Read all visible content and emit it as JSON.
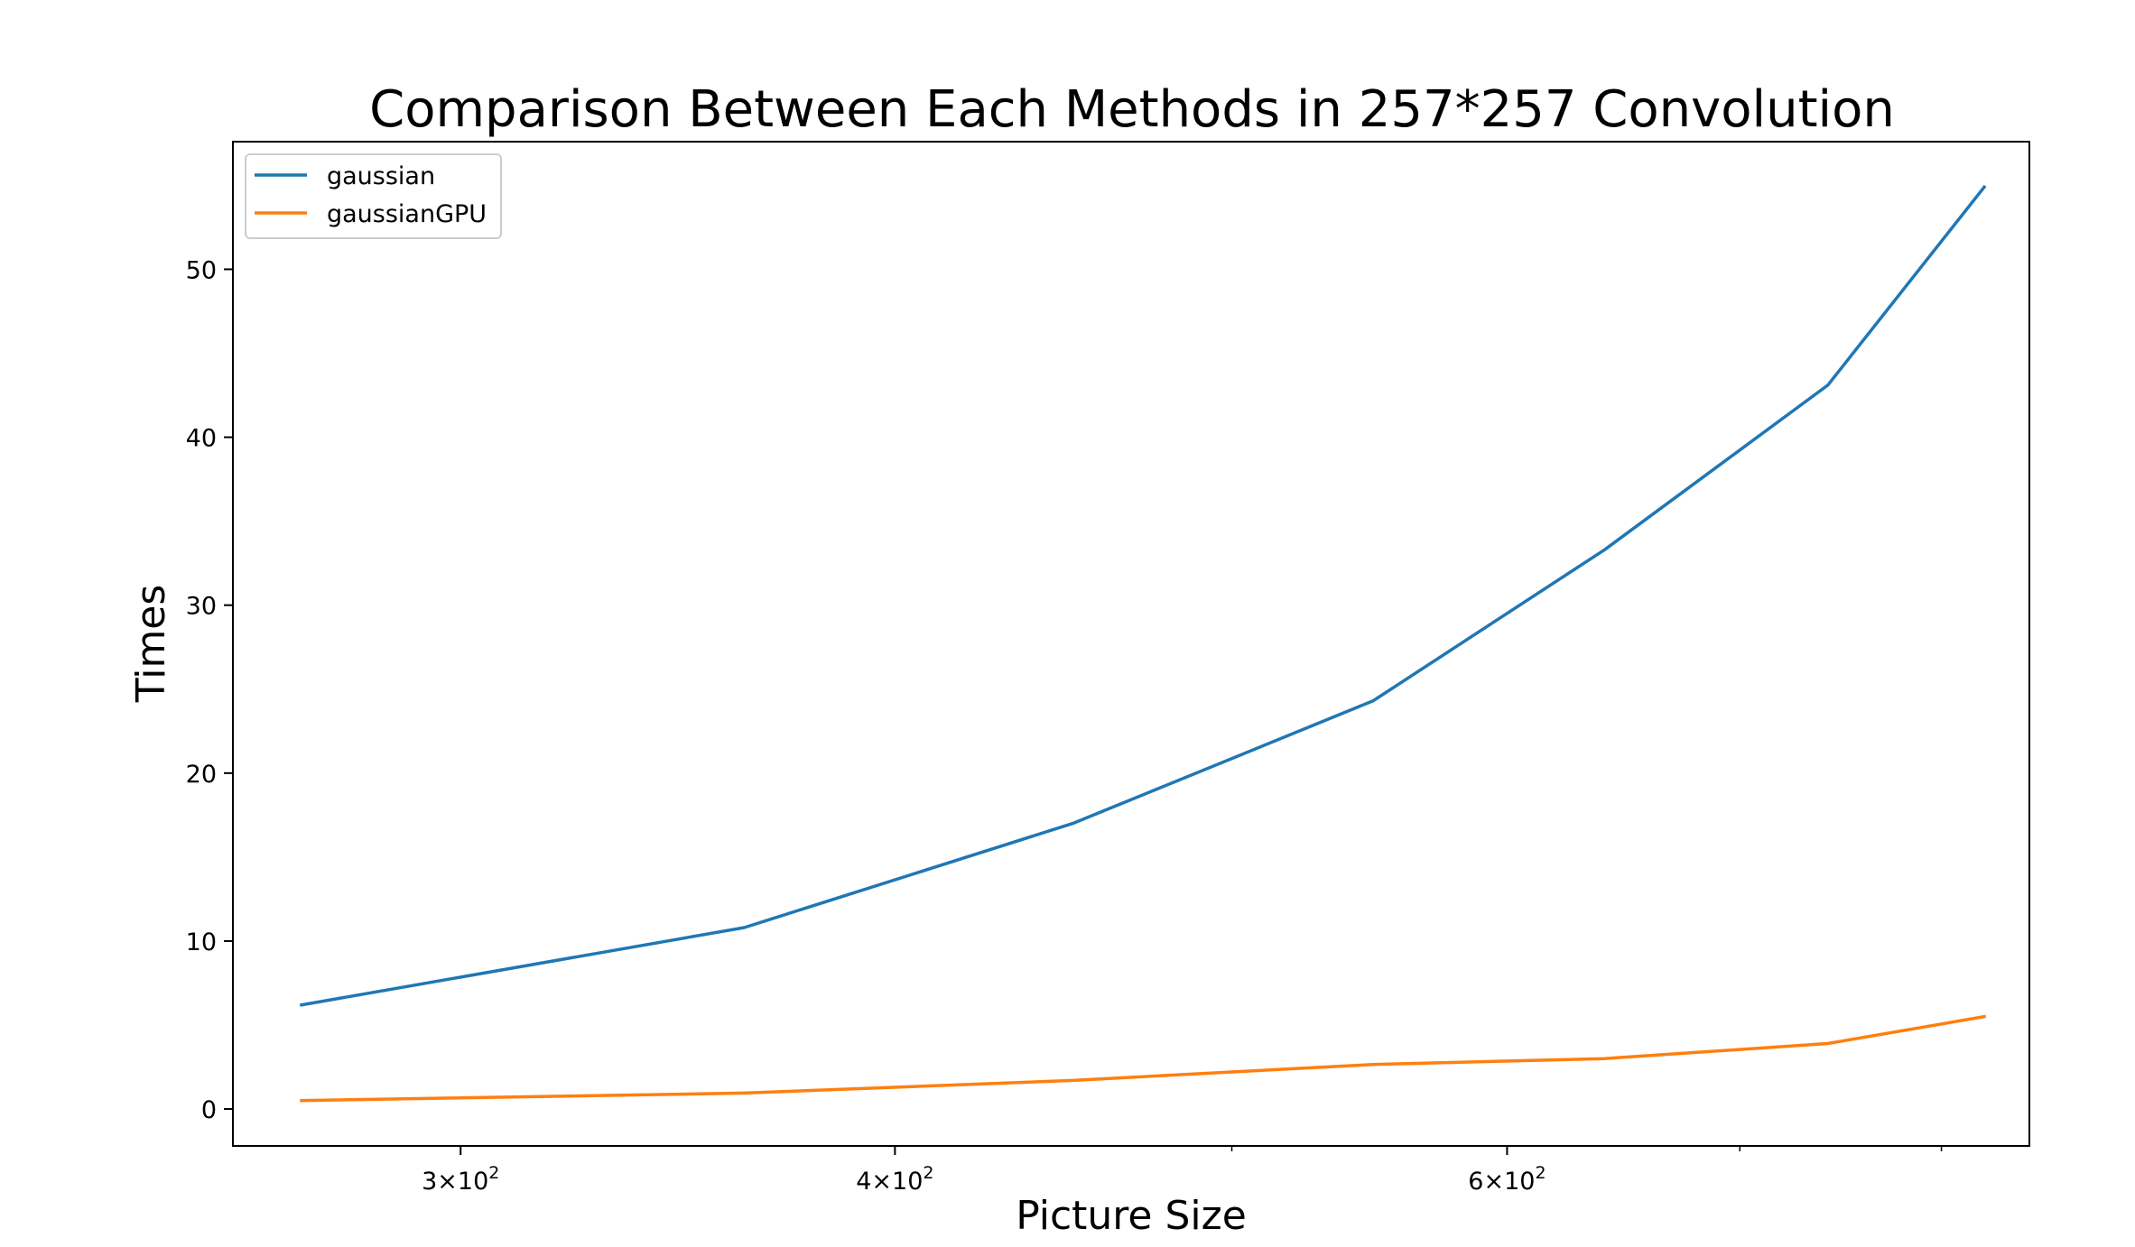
{
  "chart_data": {
    "type": "line",
    "title": "Comparison Between Each Methods in 257*257 Convolution",
    "xlabel": "Picture Size",
    "ylabel": "Times",
    "x_scale": "log",
    "x": [
      270,
      362,
      450,
      549,
      640,
      742,
      823
    ],
    "series": [
      {
        "name": "gaussian",
        "color": "#1f77b4",
        "values": [
          6.2,
          10.8,
          17.0,
          24.3,
          33.3,
          43.1,
          54.9
        ]
      },
      {
        "name": "gaussianGPU",
        "color": "#ff7f0e",
        "values": [
          0.5,
          0.95,
          1.7,
          2.65,
          3.0,
          3.9,
          5.5
        ]
      }
    ],
    "xlim": [
      258,
      848
    ],
    "ylim": [
      -2.2,
      57.6
    ],
    "yticks": [
      0,
      10,
      20,
      30,
      40,
      50
    ],
    "ytick_labels": [
      "0",
      "10",
      "20",
      "30",
      "40",
      "50"
    ],
    "xticks_major": [
      {
        "value": 300,
        "mantissa": "3",
        "base": "10",
        "exp": "2"
      },
      {
        "value": 400,
        "mantissa": "4",
        "base": "10",
        "exp": "2"
      },
      {
        "value": 600,
        "mantissa": "6",
        "base": "10",
        "exp": "2"
      }
    ],
    "xticks_minor": [
      500,
      700,
      800
    ],
    "legend_position": "upper-left",
    "grid": false
  }
}
